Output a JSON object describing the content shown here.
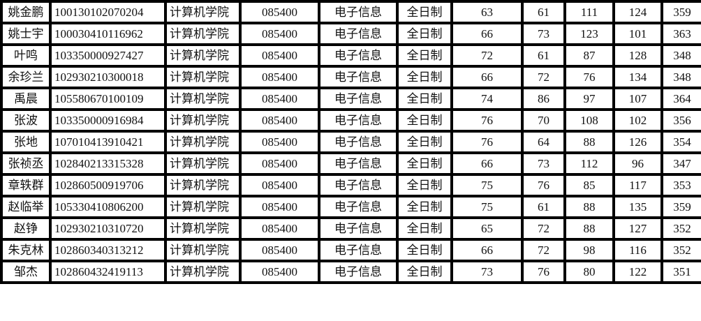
{
  "rows": [
    [
      "姚金鹏",
      "100130102070204",
      "计算机学院",
      "085400",
      "电子信息",
      "全日制",
      "63",
      "61",
      "111",
      "124",
      "359"
    ],
    [
      "姚士宇",
      "100030410116962",
      "计算机学院",
      "085400",
      "电子信息",
      "全日制",
      "66",
      "73",
      "123",
      "101",
      "363"
    ],
    [
      "叶鸣",
      "103350000927427",
      "计算机学院",
      "085400",
      "电子信息",
      "全日制",
      "72",
      "61",
      "87",
      "128",
      "348"
    ],
    [
      "余珍兰",
      "102930210300018",
      "计算机学院",
      "085400",
      "电子信息",
      "全日制",
      "66",
      "72",
      "76",
      "134",
      "348"
    ],
    [
      "禹晨",
      "105580670100109",
      "计算机学院",
      "085400",
      "电子信息",
      "全日制",
      "74",
      "86",
      "97",
      "107",
      "364"
    ],
    [
      "张波",
      "103350000916984",
      "计算机学院",
      "085400",
      "电子信息",
      "全日制",
      "76",
      "70",
      "108",
      "102",
      "356"
    ],
    [
      "张地",
      "107010413910421",
      "计算机学院",
      "085400",
      "电子信息",
      "全日制",
      "76",
      "64",
      "88",
      "126",
      "354"
    ],
    [
      "张祯丞",
      "102840213315328",
      "计算机学院",
      "085400",
      "电子信息",
      "全日制",
      "66",
      "73",
      "112",
      "96",
      "347"
    ],
    [
      "章轶群",
      "102860500919706",
      "计算机学院",
      "085400",
      "电子信息",
      "全日制",
      "75",
      "76",
      "85",
      "117",
      "353"
    ],
    [
      "赵临举",
      "105330410806200",
      "计算机学院",
      "085400",
      "电子信息",
      "全日制",
      "75",
      "61",
      "88",
      "135",
      "359"
    ],
    [
      "赵铮",
      "102930210310720",
      "计算机学院",
      "085400",
      "电子信息",
      "全日制",
      "65",
      "72",
      "88",
      "127",
      "352"
    ],
    [
      "朱克林",
      "102860340313212",
      "计算机学院",
      "085400",
      "电子信息",
      "全日制",
      "66",
      "72",
      "98",
      "116",
      "352"
    ],
    [
      "邹杰",
      "102860432419113",
      "计算机学院",
      "085400",
      "电子信息",
      "全日制",
      "73",
      "76",
      "80",
      "122",
      "351"
    ]
  ]
}
